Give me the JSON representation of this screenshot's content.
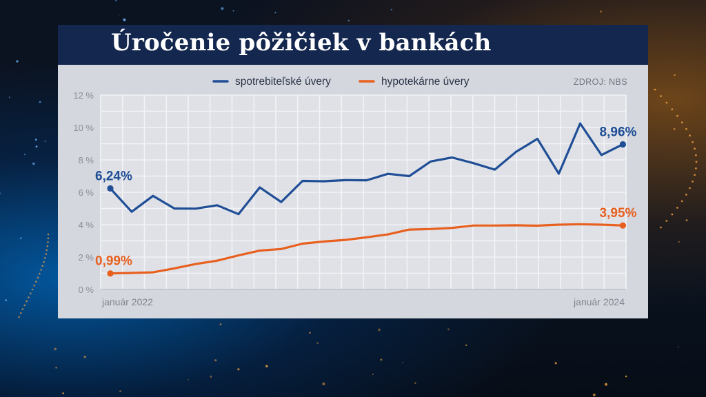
{
  "title": "Úročenie pôžičiek v bankách",
  "source": "ZDROJ: NBS",
  "colors": {
    "title_bar": "#14274f",
    "panel": "#d4d7de",
    "plot_area": "#dfe1e6",
    "grid": "#f2f3f6",
    "series_blue": "#1f4e96",
    "series_orange": "#e8601f"
  },
  "chart_data": {
    "type": "line",
    "grid": true,
    "legend_position": "top-center",
    "ylim": [
      0,
      12
    ],
    "y_ticks": [
      "0 %",
      "2 %",
      "4 %",
      "6 %",
      "8 %",
      "10 %",
      "12 %"
    ],
    "x_labels": [
      {
        "index": 0,
        "label": "január 2022"
      },
      {
        "index": 24,
        "label": "január 2024"
      }
    ],
    "series": [
      {
        "name": "spotrebiteľské úvery",
        "color": "#1f4e96",
        "values": [
          6.24,
          4.8,
          5.78,
          5.0,
          4.99,
          5.2,
          4.65,
          6.3,
          5.4,
          6.7,
          6.68,
          6.75,
          6.74,
          7.14,
          7.0,
          7.9,
          8.15,
          7.8,
          7.4,
          8.5,
          9.3,
          7.15,
          10.25,
          8.3,
          8.96
        ],
        "start_label": "6,24%",
        "end_label": "8,96%"
      },
      {
        "name": "hypotekárne úvery",
        "color": "#e8601f",
        "values": [
          0.99,
          1.02,
          1.06,
          1.3,
          1.57,
          1.78,
          2.1,
          2.4,
          2.5,
          2.83,
          2.96,
          3.06,
          3.22,
          3.4,
          3.7,
          3.73,
          3.8,
          3.95,
          3.95,
          3.96,
          3.94,
          4.0,
          4.03,
          4.0,
          3.95
        ],
        "start_label": "0,99%",
        "end_label": "3,95%"
      }
    ]
  }
}
